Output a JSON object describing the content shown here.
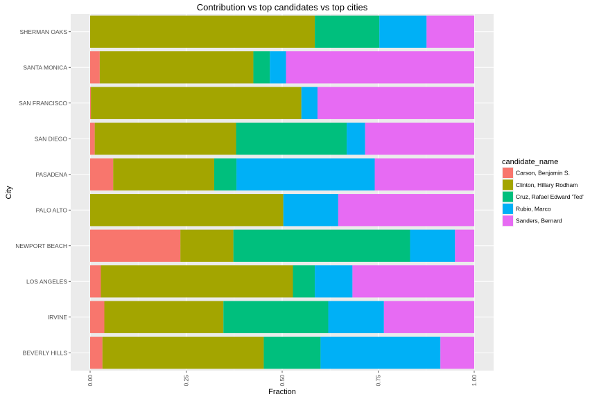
{
  "chart_data": {
    "type": "bar",
    "orientation": "horizontal",
    "stacked": true,
    "title": "Contribution vs top candidates vs top cities",
    "xlabel": "Fraction",
    "ylabel": "City",
    "xlim": [
      0,
      1
    ],
    "xticks": [
      "0.00",
      "0.25",
      "0.50",
      "0.75",
      "1.00"
    ],
    "xtick_values": [
      0,
      0.25,
      0.5,
      0.75,
      1
    ],
    "grid": true,
    "legend_title": "candidate_name",
    "legend_position": "right",
    "categories": [
      "SHERMAN OAKS",
      "SANTA MONICA",
      "SAN FRANCISCO",
      "SAN DIEGO",
      "PASADENA",
      "PALO ALTO",
      "NEWPORT BEACH",
      "LOS ANGELES",
      "IRVINE",
      "BEVERLY HILLS"
    ],
    "series": [
      {
        "name": "Carson, Benjamin S.",
        "color": "#F8766D",
        "values": [
          0.0,
          0.025,
          0.002,
          0.012,
          0.06,
          0.0,
          0.235,
          0.028,
          0.037,
          0.032
        ]
      },
      {
        "name": "Clinton, Hillary Rodham",
        "color": "#A3A500",
        "values": [
          0.585,
          0.4,
          0.548,
          0.368,
          0.263,
          0.503,
          0.138,
          0.5,
          0.31,
          0.42
        ]
      },
      {
        "name": "Cruz, Rafael Edward 'Ted'",
        "color": "#00BF7D",
        "values": [
          0.168,
          0.043,
          0.0,
          0.288,
          0.058,
          0.0,
          0.46,
          0.057,
          0.273,
          0.148
        ]
      },
      {
        "name": "Rubio, Marco",
        "color": "#00B0F6",
        "values": [
          0.123,
          0.042,
          0.042,
          0.048,
          0.36,
          0.143,
          0.117,
          0.098,
          0.145,
          0.312
        ]
      },
      {
        "name": "Sanders, Bernard",
        "color": "#E76BF3",
        "values": [
          0.124,
          0.49,
          0.408,
          0.284,
          0.259,
          0.354,
          0.05,
          0.317,
          0.235,
          0.088
        ]
      }
    ]
  }
}
